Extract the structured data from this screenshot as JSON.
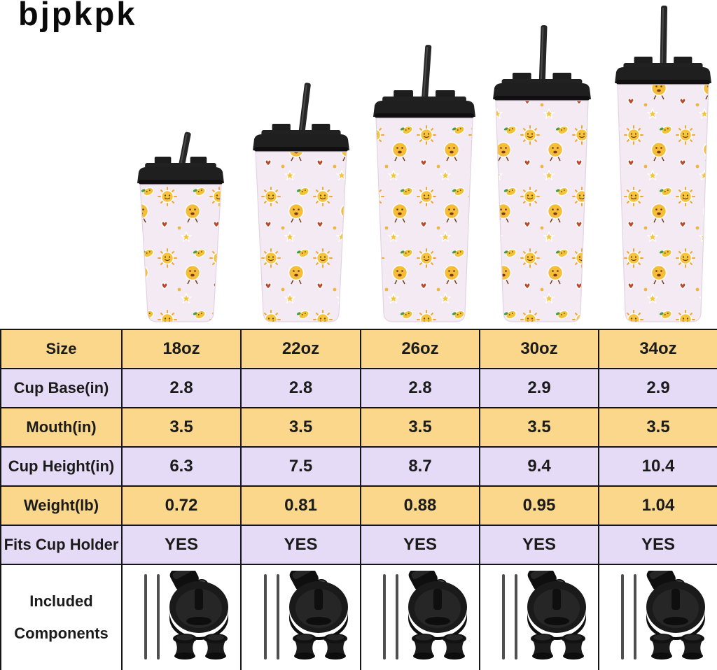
{
  "brand": {
    "logo_text": "bjpkpk"
  },
  "tumblers": {
    "sizes": [
      "18oz",
      "22oz",
      "26oz",
      "30oz",
      "34oz"
    ],
    "style": "lavender tumbler with yellow emoji stickers, black lid and straw"
  },
  "spec_table": {
    "rows": [
      {
        "label": "Size",
        "values": [
          "18oz",
          "22oz",
          "26oz",
          "30oz",
          "34oz"
        ]
      },
      {
        "label": "Cup Base(in)",
        "values": [
          "2.8",
          "2.8",
          "2.8",
          "2.9",
          "2.9"
        ]
      },
      {
        "label": "Mouth(in)",
        "values": [
          "3.5",
          "3.5",
          "3.5",
          "3.5",
          "3.5"
        ]
      },
      {
        "label": "Cup Height(in)",
        "values": [
          "6.3",
          "7.5",
          "8.7",
          "9.4",
          "10.4"
        ]
      },
      {
        "label": "Weight(lb)",
        "values": [
          "0.72",
          "0.81",
          "0.88",
          "0.95",
          "1.04"
        ]
      },
      {
        "label": "Fits Cup Holder",
        "values": [
          "YES",
          "YES",
          "YES",
          "YES",
          "YES"
        ]
      },
      {
        "label": "Included Components",
        "component_icons": [
          "two-straws-icon",
          "flip-lid-icon",
          "two-plugs-icon"
        ]
      }
    ]
  },
  "colors": {
    "row_yellow": "#fbd78c",
    "row_lavender": "#e6dbf6",
    "table_border": "#151515",
    "cup_body": "#f4eaf4",
    "lid_black": "#1f1f1f",
    "sticker_yellow": "#f7c43e"
  }
}
